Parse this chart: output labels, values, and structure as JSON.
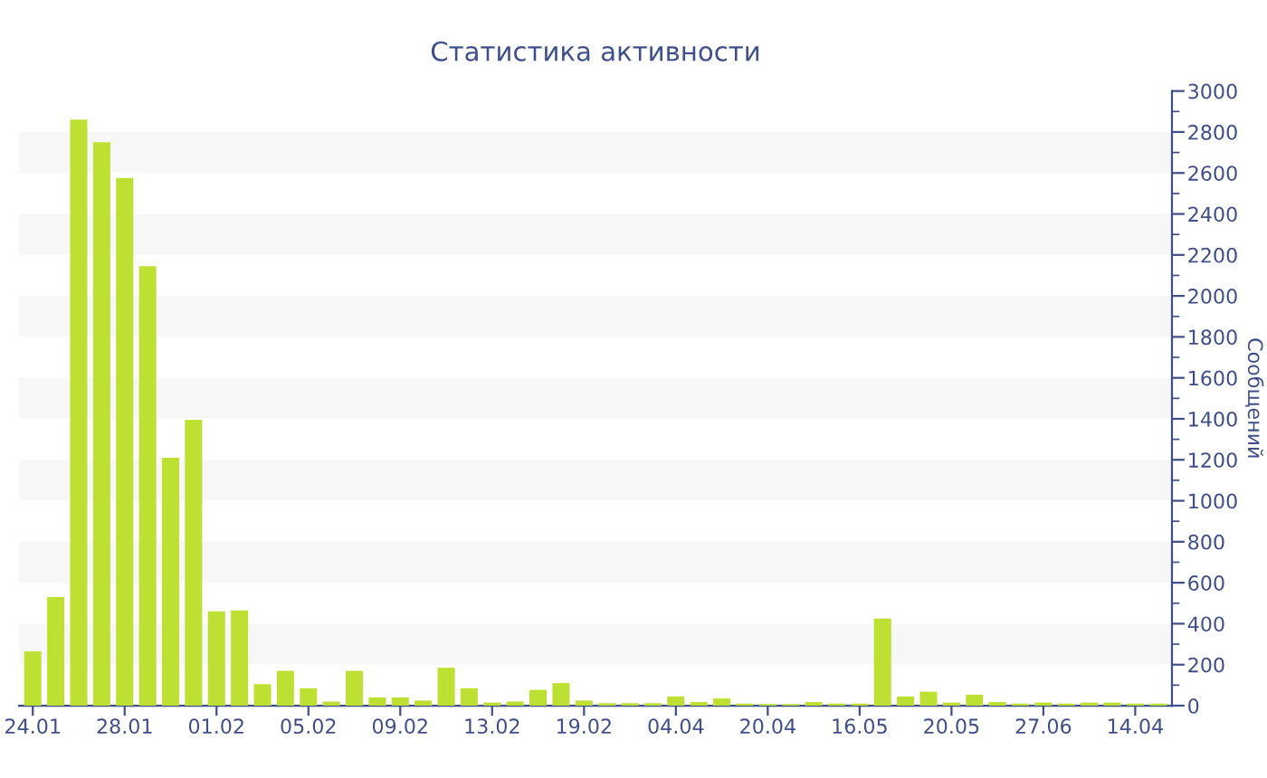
{
  "chart_data": {
    "type": "bar",
    "title": "Статистика активности",
    "ylabel": "Сообщений",
    "categories": [
      "24.01",
      null,
      null,
      null,
      "28.01",
      null,
      null,
      null,
      "01.02",
      null,
      null,
      null,
      "05.02",
      null,
      null,
      null,
      "09.02",
      null,
      null,
      null,
      "13.02",
      null,
      null,
      null,
      "19.02",
      null,
      null,
      null,
      "04.04",
      null,
      null,
      null,
      "20.04",
      null,
      null,
      null,
      "16.05",
      null,
      null,
      null,
      "20.05",
      null,
      null,
      null,
      "27.06",
      null,
      null,
      null,
      "14.04",
      null
    ],
    "values": [
      265,
      530,
      2860,
      2750,
      2575,
      2145,
      1210,
      1395,
      460,
      465,
      105,
      170,
      85,
      20,
      170,
      40,
      40,
      25,
      185,
      85,
      15,
      20,
      77,
      110,
      25,
      12,
      12,
      12,
      45,
      18,
      35,
      10,
      8,
      8,
      18,
      10,
      10,
      425,
      45,
      68,
      15,
      53,
      18,
      10,
      15,
      10,
      15,
      15,
      10,
      10
    ],
    "color": "#bde033",
    "ylim": [
      0,
      3000
    ],
    "yticks": [
      0,
      200,
      400,
      600,
      800,
      1000,
      1200,
      1400,
      1600,
      1800,
      2000,
      2200,
      2400,
      2600,
      2800,
      3000
    ],
    "legend": false,
    "bands": [
      {
        "axis": "y",
        "from": 200,
        "to": 400,
        "color": "#f7f7f7"
      },
      {
        "axis": "y",
        "from": 600,
        "to": 800,
        "color": "#f7f7f7"
      },
      {
        "axis": "y",
        "from": 1000,
        "to": 1200,
        "color": "#f7f7f7"
      },
      {
        "axis": "y",
        "from": 1400,
        "to": 1600,
        "color": "#f7f7f7"
      },
      {
        "axis": "y",
        "from": 1800,
        "to": 2000,
        "color": "#f7f7f7"
      },
      {
        "axis": "y",
        "from": 2200,
        "to": 2400,
        "color": "#f7f7f7"
      },
      {
        "axis": "y",
        "from": 2600,
        "to": 2800,
        "color": "#f7f7f7"
      }
    ]
  }
}
